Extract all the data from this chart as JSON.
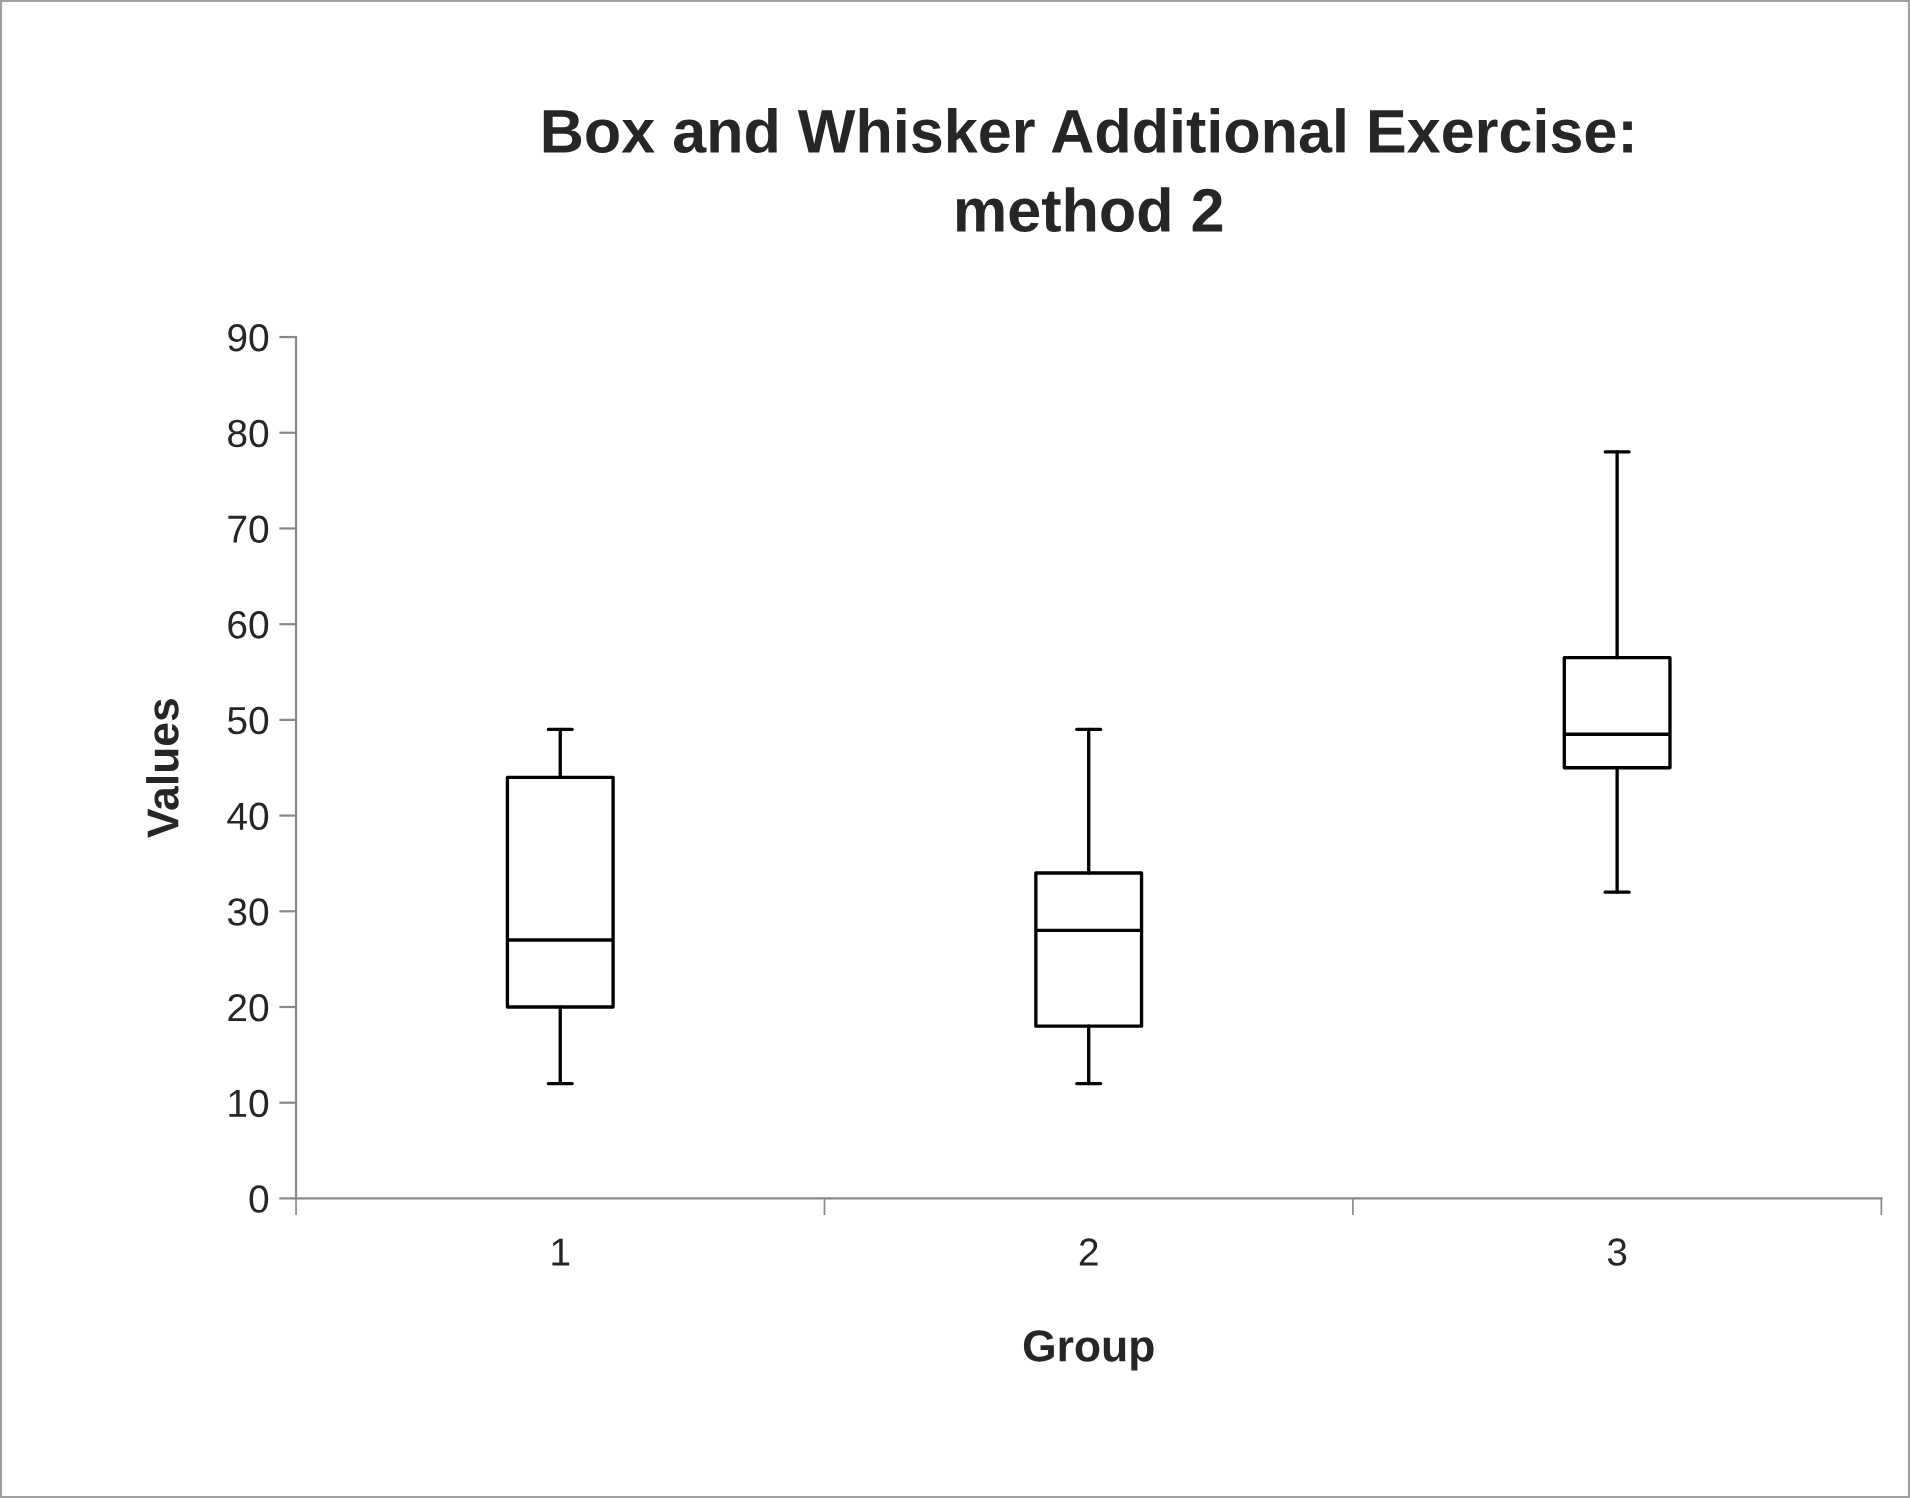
{
  "chart_data": {
    "type": "box",
    "title": "Box and Whisker Additional Exercise:\nmethod 2",
    "xlabel": "Group",
    "ylabel": "Values",
    "categories": [
      "1",
      "2",
      "3"
    ],
    "boxes": [
      {
        "low": 12,
        "q1": 20,
        "median": 27,
        "q3": 44,
        "high": 49
      },
      {
        "low": 12,
        "q1": 18,
        "median": 28,
        "q3": 34,
        "high": 49
      },
      {
        "low": 32,
        "q1": 45,
        "median": 48.5,
        "q3": 56.5,
        "high": 78
      }
    ],
    "ylim": [
      0,
      90
    ],
    "yticks": [
      0,
      10,
      20,
      30,
      40,
      50,
      60,
      70,
      80,
      90
    ],
    "grid": false,
    "legend": false
  }
}
